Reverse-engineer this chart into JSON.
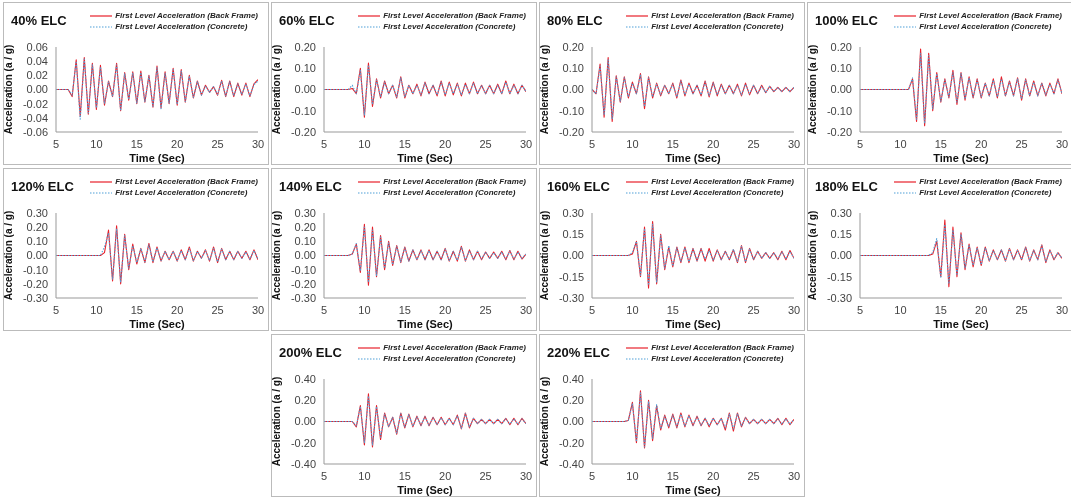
{
  "chart_data": [
    {
      "type": "line",
      "title": "40% ELC",
      "xlabel": "Time (Sec)",
      "ylabel": "Acceleration (a / g)",
      "legend": "top right",
      "xlim": [
        5,
        30
      ],
      "xticks": [
        5,
        10,
        15,
        20,
        25,
        30
      ],
      "ylim": [
        -0.06,
        0.06
      ],
      "yticks": [
        {
          "value": -0.06,
          "label": "-0.06"
        },
        {
          "value": -0.04,
          "label": "-0.04"
        },
        {
          "value": -0.02,
          "label": "-0.02"
        },
        {
          "value": 0,
          "label": "0.00"
        },
        {
          "value": 0.02,
          "label": "0.02"
        },
        {
          "value": 0.04,
          "label": "0.04"
        },
        {
          "value": 0.06,
          "label": "0.06"
        }
      ],
      "x": [
        5,
        5.5,
        6,
        6.5,
        7,
        7.5,
        8,
        8.5,
        9,
        9.5,
        10,
        10.5,
        11,
        11.5,
        12,
        12.5,
        13,
        13.5,
        14,
        14.5,
        15,
        15.5,
        16,
        16.5,
        17,
        17.5,
        18,
        18.5,
        19,
        19.5,
        20,
        20.5,
        21,
        21.5,
        22,
        22.5,
        23,
        23.5,
        24,
        24.5,
        25,
        25.5,
        26,
        26.5,
        27,
        27.5,
        28,
        28.5,
        29,
        29.5,
        30
      ],
      "series": [
        {
          "name": "First Level Acceleration (Back Frame)",
          "color": "#e8202a",
          "line_style": "solid",
          "values": [
            0,
            0,
            0,
            0,
            -0.01,
            0.042,
            -0.038,
            0.045,
            -0.035,
            0.037,
            -0.028,
            0.034,
            -0.022,
            0.012,
            -0.01,
            0.037,
            -0.03,
            0.024,
            -0.015,
            0.025,
            -0.02,
            0.026,
            -0.018,
            0.02,
            -0.025,
            0.033,
            -0.026,
            0.025,
            -0.02,
            0.03,
            -0.022,
            0.028,
            -0.018,
            0.02,
            -0.012,
            0.012,
            -0.008,
            0.006,
            -0.004,
            0.004,
            -0.008,
            0.013,
            -0.01,
            0.012,
            -0.01,
            0.009,
            -0.008,
            0.009,
            -0.01,
            0.008,
            0.014
          ]
        },
        {
          "name": "First Level Acceleration (Concrete)",
          "color": "#4f9fd8",
          "line_style": "dotted",
          "values": [
            0,
            0,
            0,
            0,
            -0.008,
            0.04,
            -0.042,
            0.043,
            -0.033,
            0.035,
            -0.026,
            0.032,
            -0.02,
            0.011,
            -0.01,
            0.035,
            -0.03,
            0.022,
            -0.014,
            0.023,
            -0.019,
            0.024,
            -0.017,
            0.019,
            -0.024,
            0.031,
            -0.027,
            0.023,
            -0.019,
            0.028,
            -0.021,
            0.026,
            -0.017,
            0.019,
            -0.011,
            0.011,
            -0.008,
            0.005,
            -0.004,
            0.004,
            -0.007,
            0.012,
            -0.009,
            0.011,
            -0.009,
            0.008,
            -0.007,
            0.008,
            -0.009,
            0.007,
            0.012
          ]
        }
      ]
    },
    {
      "type": "line",
      "title": "60% ELC",
      "xlabel": "Time (Sec)",
      "ylabel": "Acceleration (a / g)",
      "legend": "top right",
      "xlim": [
        5,
        30
      ],
      "xticks": [
        5,
        10,
        15,
        20,
        25,
        30
      ],
      "ylim": [
        -0.2,
        0.2
      ],
      "yticks": [
        {
          "value": -0.2,
          "label": "-0.20"
        },
        {
          "value": -0.1,
          "label": "-0.10"
        },
        {
          "value": 0,
          "label": "0.00"
        },
        {
          "value": 0.1,
          "label": "0.10"
        },
        {
          "value": 0.2,
          "label": "0.20"
        }
      ],
      "x": [
        5,
        5.5,
        6,
        6.5,
        7,
        7.5,
        8,
        8.5,
        9,
        9.5,
        10,
        10.5,
        11,
        11.5,
        12,
        12.5,
        13,
        13.5,
        14,
        14.5,
        15,
        15.5,
        16,
        16.5,
        17,
        17.5,
        18,
        18.5,
        19,
        19.5,
        20,
        20.5,
        21,
        21.5,
        22,
        22.5,
        23,
        23.5,
        24,
        24.5,
        25,
        25.5,
        26,
        26.5,
        27,
        27.5,
        28,
        28.5,
        29,
        29.5,
        30
      ],
      "series": [
        {
          "name": "First Level Acceleration (Back Frame)",
          "color": "#e8202a",
          "line_style": "solid",
          "values": [
            0,
            0,
            0,
            0,
            0,
            0,
            0,
            0.005,
            -0.02,
            0.1,
            -0.13,
            0.125,
            -0.08,
            0.05,
            -0.04,
            0.04,
            -0.02,
            0.02,
            -0.04,
            0.06,
            -0.04,
            0.02,
            -0.02,
            0.025,
            -0.03,
            0.035,
            -0.02,
            0.02,
            -0.03,
            0.04,
            -0.03,
            0.035,
            -0.025,
            0.03,
            -0.03,
            0.03,
            -0.02,
            0.035,
            -0.02,
            0.02,
            -0.02,
            0.02,
            -0.02,
            0.025,
            -0.02,
            0.04,
            -0.02,
            0.025,
            -0.02,
            0.02,
            -0.01
          ]
        },
        {
          "name": "First Level Acceleration (Concrete)",
          "color": "#4f9fd8",
          "line_style": "dotted",
          "values": [
            0,
            0,
            0,
            0,
            0,
            0,
            0,
            0.02,
            -0.02,
            0.09,
            -0.12,
            0.115,
            -0.07,
            0.045,
            -0.035,
            0.035,
            -0.02,
            0.02,
            -0.035,
            0.055,
            -0.035,
            0.02,
            -0.02,
            0.02,
            -0.025,
            0.03,
            -0.02,
            0.02,
            -0.025,
            0.035,
            -0.025,
            0.03,
            -0.02,
            0.025,
            -0.025,
            0.025,
            -0.02,
            0.03,
            -0.02,
            0.02,
            -0.02,
            0.02,
            -0.02,
            0.02,
            -0.02,
            0.035,
            -0.02,
            0.02,
            -0.02,
            0.02,
            -0.01
          ]
        }
      ]
    },
    {
      "type": "line",
      "title": "80% ELC",
      "xlabel": "Time (Sec)",
      "ylabel": "Acceleration (a / g)",
      "legend": "top right",
      "xlim": [
        5,
        30
      ],
      "xticks": [
        5,
        10,
        15,
        20,
        25,
        30
      ],
      "ylim": [
        -0.2,
        0.2
      ],
      "yticks": [
        {
          "value": -0.2,
          "label": "-0.20"
        },
        {
          "value": -0.1,
          "label": "-0.10"
        },
        {
          "value": 0,
          "label": "0.00"
        },
        {
          "value": 0.1,
          "label": "0.10"
        },
        {
          "value": 0.2,
          "label": "0.20"
        }
      ],
      "x": [
        5,
        5.5,
        6,
        6.5,
        7,
        7.5,
        8,
        8.5,
        9,
        9.5,
        10,
        10.5,
        11,
        11.5,
        12,
        12.5,
        13,
        13.5,
        14,
        14.5,
        15,
        15.5,
        16,
        16.5,
        17,
        17.5,
        18,
        18.5,
        19,
        19.5,
        20,
        20.5,
        21,
        21.5,
        22,
        22.5,
        23,
        23.5,
        24,
        24.5,
        25,
        25.5,
        26,
        26.5,
        27,
        27.5,
        28,
        28.5,
        29,
        29.5,
        30
      ],
      "series": [
        {
          "name": "First Level Acceleration (Back Frame)",
          "color": "#e8202a",
          "line_style": "solid",
          "values": [
            0,
            -0.02,
            0.12,
            -0.13,
            0.15,
            -0.15,
            0.065,
            -0.06,
            0.06,
            -0.04,
            0.035,
            -0.02,
            0.075,
            -0.09,
            0.06,
            -0.04,
            0.03,
            -0.03,
            0.02,
            -0.02,
            0.03,
            -0.04,
            0.045,
            -0.03,
            0.03,
            -0.02,
            0.02,
            -0.03,
            0.04,
            -0.035,
            0.035,
            -0.03,
            0.025,
            -0.02,
            0.02,
            -0.02,
            0.025,
            -0.03,
            0.03,
            -0.025,
            0.02,
            -0.02,
            0.02,
            -0.015,
            0.015,
            -0.01,
            0.01,
            -0.01,
            0.01,
            -0.01,
            0.01
          ]
        },
        {
          "name": "First Level Acceleration (Concrete)",
          "color": "#4f9fd8",
          "line_style": "dotted",
          "values": [
            0,
            -0.02,
            0.11,
            -0.12,
            0.14,
            -0.14,
            0.06,
            -0.055,
            0.055,
            -0.035,
            0.03,
            -0.02,
            0.07,
            -0.08,
            0.055,
            -0.035,
            0.025,
            -0.025,
            0.02,
            -0.02,
            0.025,
            -0.035,
            0.04,
            -0.025,
            0.025,
            -0.02,
            0.02,
            -0.025,
            0.035,
            -0.03,
            0.03,
            -0.025,
            0.02,
            -0.02,
            0.02,
            -0.02,
            0.02,
            -0.025,
            0.025,
            -0.02,
            0.02,
            -0.02,
            0.015,
            -0.015,
            0.015,
            -0.01,
            0.01,
            -0.01,
            0.01,
            -0.01,
            0.01
          ]
        }
      ]
    },
    {
      "type": "line",
      "title": "100% ELC",
      "xlabel": "Time (Sec)",
      "ylabel": "Acceleration (a / g)",
      "legend": "top right",
      "xlim": [
        5,
        30
      ],
      "xticks": [
        5,
        10,
        15,
        20,
        25,
        30
      ],
      "ylim": [
        -0.2,
        0.2
      ],
      "yticks": [
        {
          "value": -0.2,
          "label": "-0.20"
        },
        {
          "value": -0.1,
          "label": "-0.10"
        },
        {
          "value": 0,
          "label": "0.00"
        },
        {
          "value": 0.1,
          "label": "0.10"
        },
        {
          "value": 0.2,
          "label": "0.20"
        }
      ],
      "x": [
        5,
        5.5,
        6,
        6.5,
        7,
        7.5,
        8,
        8.5,
        9,
        9.5,
        10,
        10.5,
        11,
        11.5,
        12,
        12.5,
        13,
        13.5,
        14,
        14.5,
        15,
        15.5,
        16,
        16.5,
        17,
        17.5,
        18,
        18.5,
        19,
        19.5,
        20,
        20.5,
        21,
        21.5,
        22,
        22.5,
        23,
        23.5,
        24,
        24.5,
        25,
        25.5,
        26,
        26.5,
        27,
        27.5,
        28,
        28.5,
        29,
        29.5,
        30
      ],
      "series": [
        {
          "name": "First Level Acceleration (Back Frame)",
          "color": "#e8202a",
          "line_style": "solid",
          "values": [
            0,
            0,
            0,
            0,
            0,
            0,
            0,
            0,
            0,
            0,
            0,
            0,
            0,
            0.05,
            -0.15,
            0.19,
            -0.17,
            0.17,
            -0.1,
            0.08,
            -0.06,
            0.05,
            -0.04,
            0.09,
            -0.07,
            0.08,
            -0.05,
            0.06,
            -0.04,
            0.05,
            -0.04,
            0.03,
            -0.03,
            0.05,
            -0.04,
            0.06,
            -0.03,
            0.04,
            -0.03,
            0.055,
            -0.05,
            0.05,
            -0.03,
            0.04,
            -0.03,
            0.03,
            -0.03,
            0.03,
            -0.02,
            0.05,
            -0.02
          ]
        },
        {
          "name": "First Level Acceleration (Concrete)",
          "color": "#4f9fd8",
          "line_style": "dotted",
          "values": [
            0,
            0,
            0,
            0,
            0,
            0,
            0,
            0,
            0,
            0,
            0,
            0,
            0,
            0.055,
            -0.14,
            0.17,
            -0.16,
            0.16,
            -0.09,
            0.075,
            -0.055,
            0.045,
            -0.035,
            0.08,
            -0.06,
            0.075,
            -0.045,
            0.055,
            -0.035,
            0.045,
            -0.035,
            0.03,
            -0.03,
            0.045,
            -0.035,
            0.05,
            -0.03,
            0.035,
            -0.03,
            0.05,
            -0.045,
            0.045,
            -0.03,
            0.035,
            -0.03,
            0.03,
            -0.025,
            0.025,
            -0.02,
            0.045,
            -0.02
          ]
        }
      ]
    },
    {
      "type": "line",
      "title": "120% ELC",
      "xlabel": "Time (Sec)",
      "ylabel": "Acceleration (a / g)",
      "legend": "top right",
      "xlim": [
        5,
        30
      ],
      "xticks": [
        5,
        10,
        15,
        20,
        25,
        30
      ],
      "ylim": [
        -0.3,
        0.3
      ],
      "yticks": [
        {
          "value": -0.3,
          "label": "-0.30"
        },
        {
          "value": -0.2,
          "label": "-0.20"
        },
        {
          "value": -0.1,
          "label": "-0.10"
        },
        {
          "value": 0,
          "label": "0.00"
        },
        {
          "value": 0.1,
          "label": "0.10"
        },
        {
          "value": 0.2,
          "label": "0.20"
        },
        {
          "value": 0.3,
          "label": "0.30"
        }
      ],
      "x": [
        5,
        5.5,
        6,
        6.5,
        7,
        7.5,
        8,
        8.5,
        9,
        9.5,
        10,
        10.5,
        11,
        11.5,
        12,
        12.5,
        13,
        13.5,
        14,
        14.5,
        15,
        15.5,
        16,
        16.5,
        17,
        17.5,
        18,
        18.5,
        19,
        19.5,
        20,
        20.5,
        21,
        21.5,
        22,
        22.5,
        23,
        23.5,
        24,
        24.5,
        25,
        25.5,
        26,
        26.5,
        27,
        27.5,
        28,
        28.5,
        29,
        29.5,
        30
      ],
      "series": [
        {
          "name": "First Level Acceleration (Back Frame)",
          "color": "#e8202a",
          "line_style": "solid",
          "values": [
            0,
            0,
            0,
            0,
            0,
            0,
            0,
            0,
            0,
            0,
            0,
            0,
            0.02,
            0.18,
            -0.18,
            0.21,
            -0.2,
            0.15,
            -0.1,
            0.08,
            -0.06,
            0.05,
            -0.05,
            0.085,
            -0.05,
            0.06,
            -0.04,
            0.03,
            -0.03,
            0.03,
            -0.04,
            0.04,
            -0.03,
            0.06,
            -0.04,
            0.03,
            -0.02,
            0.04,
            -0.04,
            0.06,
            -0.05,
            0.05,
            -0.03,
            0.03,
            -0.03,
            0.03,
            -0.02,
            0.03,
            -0.03,
            0.04,
            -0.03
          ]
        },
        {
          "name": "First Level Acceleration (Concrete)",
          "color": "#4f9fd8",
          "line_style": "dotted",
          "values": [
            0,
            0,
            0,
            0,
            0,
            0,
            0,
            0,
            0,
            0,
            0,
            0,
            0.06,
            0.16,
            -0.17,
            0.19,
            -0.19,
            0.14,
            -0.09,
            0.07,
            -0.05,
            0.05,
            -0.045,
            0.075,
            -0.045,
            0.055,
            -0.035,
            0.03,
            -0.03,
            0.03,
            -0.035,
            0.035,
            -0.03,
            0.05,
            -0.035,
            0.03,
            -0.02,
            0.035,
            -0.035,
            0.05,
            -0.045,
            0.045,
            -0.03,
            0.03,
            -0.03,
            0.03,
            -0.02,
            0.025,
            -0.025,
            0.035,
            -0.025
          ]
        }
      ]
    },
    {
      "type": "line",
      "title": "140% ELC",
      "xlabel": "Time (Sec)",
      "ylabel": "Acceleration (a / g)",
      "legend": "top right",
      "xlim": [
        5,
        30
      ],
      "xticks": [
        5,
        10,
        15,
        20,
        25,
        30
      ],
      "ylim": [
        -0.3,
        0.3
      ],
      "yticks": [
        {
          "value": -0.3,
          "label": "-0.30"
        },
        {
          "value": -0.2,
          "label": "-0.20"
        },
        {
          "value": -0.1,
          "label": "-0.10"
        },
        {
          "value": 0,
          "label": "0.00"
        },
        {
          "value": 0.1,
          "label": "0.10"
        },
        {
          "value": 0.2,
          "label": "0.20"
        },
        {
          "value": 0.3,
          "label": "0.30"
        }
      ],
      "x": [
        5,
        5.5,
        6,
        6.5,
        7,
        7.5,
        8,
        8.5,
        9,
        9.5,
        10,
        10.5,
        11,
        11.5,
        12,
        12.5,
        13,
        13.5,
        14,
        14.5,
        15,
        15.5,
        16,
        16.5,
        17,
        17.5,
        18,
        18.5,
        19,
        19.5,
        20,
        20.5,
        21,
        21.5,
        22,
        22.5,
        23,
        23.5,
        24,
        24.5,
        25,
        25.5,
        26,
        26.5,
        27,
        27.5,
        28,
        28.5,
        29,
        29.5,
        30
      ],
      "series": [
        {
          "name": "First Level Acceleration (Back Frame)",
          "color": "#e8202a",
          "line_style": "solid",
          "values": [
            0,
            0,
            0,
            0,
            0,
            0,
            0,
            0.01,
            0.08,
            -0.12,
            0.22,
            -0.21,
            0.2,
            -0.15,
            0.14,
            -0.1,
            0.1,
            -0.07,
            0.07,
            -0.05,
            0.06,
            -0.04,
            0.04,
            -0.03,
            0.04,
            -0.03,
            0.04,
            -0.03,
            0.03,
            -0.03,
            0.05,
            -0.04,
            0.03,
            -0.04,
            0.065,
            -0.04,
            0.04,
            -0.03,
            0.03,
            -0.03,
            0.025,
            -0.02,
            0.025,
            -0.02,
            0.03,
            -0.03,
            0.035,
            -0.03,
            0.03,
            -0.025,
            0.01
          ]
        },
        {
          "name": "First Level Acceleration (Concrete)",
          "color": "#4f9fd8",
          "line_style": "dotted",
          "values": [
            0,
            0,
            0,
            0,
            0,
            0,
            0,
            0.01,
            0.085,
            -0.11,
            0.2,
            -0.19,
            0.18,
            -0.14,
            0.13,
            -0.09,
            0.09,
            -0.065,
            0.065,
            -0.045,
            0.055,
            -0.04,
            0.04,
            -0.03,
            0.035,
            -0.03,
            0.035,
            -0.03,
            0.03,
            -0.03,
            0.045,
            -0.035,
            0.03,
            -0.035,
            0.06,
            -0.035,
            0.035,
            -0.03,
            0.03,
            -0.025,
            0.025,
            -0.02,
            0.02,
            -0.02,
            0.025,
            -0.025,
            0.03,
            -0.025,
            0.025,
            -0.02,
            0.01
          ]
        }
      ]
    },
    {
      "type": "line",
      "title": "160% ELC",
      "xlabel": "Time (Sec)",
      "ylabel": "Acceleration (a / g)",
      "legend": "top right",
      "xlim": [
        5,
        30
      ],
      "xticks": [
        5,
        10,
        15,
        20,
        25,
        30
      ],
      "ylim": [
        -0.3,
        0.3
      ],
      "yticks": [
        {
          "value": -0.3,
          "label": "-0.30"
        },
        {
          "value": -0.15,
          "label": "-0.15"
        },
        {
          "value": 0,
          "label": "0.00"
        },
        {
          "value": 0.15,
          "label": "0.15"
        },
        {
          "value": 0.3,
          "label": "0.30"
        }
      ],
      "x": [
        5,
        5.5,
        6,
        6.5,
        7,
        7.5,
        8,
        8.5,
        9,
        9.5,
        10,
        10.5,
        11,
        11.5,
        12,
        12.5,
        13,
        13.5,
        14,
        14.5,
        15,
        15.5,
        16,
        16.5,
        17,
        17.5,
        18,
        18.5,
        19,
        19.5,
        20,
        20.5,
        21,
        21.5,
        22,
        22.5,
        23,
        23.5,
        24,
        24.5,
        25,
        25.5,
        26,
        26.5,
        27,
        27.5,
        28,
        28.5,
        29,
        29.5,
        30
      ],
      "series": [
        {
          "name": "First Level Acceleration (Back Frame)",
          "color": "#e8202a",
          "line_style": "solid",
          "values": [
            0,
            0,
            0,
            0,
            0,
            0,
            0,
            0,
            0,
            0,
            0.01,
            0.1,
            -0.15,
            0.2,
            -0.23,
            0.24,
            -0.2,
            0.15,
            -0.1,
            0.06,
            -0.08,
            0.06,
            -0.05,
            0.06,
            -0.05,
            0.05,
            -0.04,
            0.05,
            -0.04,
            0.05,
            -0.04,
            0.04,
            -0.03,
            0.03,
            -0.03,
            0.04,
            -0.05,
            0.07,
            -0.05,
            0.05,
            -0.03,
            0.03,
            -0.02,
            0.02,
            -0.02,
            0.02,
            -0.03,
            0.03,
            -0.03,
            0.035,
            -0.02
          ]
        },
        {
          "name": "First Level Acceleration (Concrete)",
          "color": "#4f9fd8",
          "line_style": "dotted",
          "values": [
            0,
            0,
            0,
            0,
            0,
            0,
            0,
            0,
            0,
            0,
            0.02,
            0.1,
            -0.14,
            0.19,
            -0.21,
            0.22,
            -0.19,
            0.14,
            -0.09,
            0.07,
            -0.075,
            0.055,
            -0.045,
            0.055,
            -0.045,
            0.045,
            -0.035,
            0.045,
            -0.025,
            0.035,
            -0.035,
            0.035,
            -0.03,
            0.03,
            -0.03,
            0.045,
            -0.045,
            0.065,
            -0.045,
            0.045,
            -0.03,
            0.03,
            -0.02,
            0.02,
            -0.02,
            0.02,
            -0.025,
            0.025,
            -0.025,
            0.03,
            -0.02
          ]
        }
      ]
    },
    {
      "type": "line",
      "title": "180% ELC",
      "xlabel": "Time (Sec)",
      "ylabel": "Acceleration (a / g)",
      "legend": "top right",
      "xlim": [
        5,
        30
      ],
      "xticks": [
        5,
        10,
        15,
        20,
        25,
        30
      ],
      "ylim": [
        -0.3,
        0.3
      ],
      "yticks": [
        {
          "value": -0.3,
          "label": "-0.30"
        },
        {
          "value": -0.15,
          "label": "-0.15"
        },
        {
          "value": 0,
          "label": "0.00"
        },
        {
          "value": 0.15,
          "label": "0.15"
        },
        {
          "value": 0.3,
          "label": "0.30"
        }
      ],
      "x": [
        5,
        5.5,
        6,
        6.5,
        7,
        7.5,
        8,
        8.5,
        9,
        9.5,
        10,
        10.5,
        11,
        11.5,
        12,
        12.5,
        13,
        13.5,
        14,
        14.5,
        15,
        15.5,
        16,
        16.5,
        17,
        17.5,
        18,
        18.5,
        19,
        19.5,
        20,
        20.5,
        21,
        21.5,
        22,
        22.5,
        23,
        23.5,
        24,
        24.5,
        25,
        25.5,
        26,
        26.5,
        27,
        27.5,
        28,
        28.5,
        29,
        29.5,
        30
      ],
      "series": [
        {
          "name": "First Level Acceleration (Back Frame)",
          "color": "#e8202a",
          "line_style": "solid",
          "values": [
            0,
            0,
            0,
            0,
            0,
            0,
            0,
            0,
            0,
            0,
            0,
            0,
            0,
            0,
            0,
            0,
            0,
            0,
            0.01,
            0.1,
            -0.15,
            0.25,
            -0.22,
            0.2,
            -0.15,
            0.16,
            -0.1,
            0.08,
            -0.08,
            0.06,
            -0.07,
            0.06,
            -0.04,
            0.04,
            -0.03,
            0.04,
            -0.04,
            0.05,
            -0.03,
            0.04,
            -0.03,
            0.06,
            -0.04,
            0.04,
            -0.03,
            0.075,
            -0.05,
            0.04,
            -0.03,
            0.02,
            -0.02
          ]
        },
        {
          "name": "First Level Acceleration (Concrete)",
          "color": "#4f9fd8",
          "line_style": "dotted",
          "values": [
            0,
            0,
            0,
            0,
            0,
            0,
            0,
            0,
            0,
            0,
            0,
            0,
            0,
            0,
            0,
            0,
            0,
            0,
            0.02,
            0.12,
            -0.16,
            0.22,
            -0.2,
            0.18,
            -0.14,
            0.15,
            -0.09,
            0.075,
            -0.07,
            0.055,
            -0.065,
            0.055,
            -0.035,
            0.035,
            -0.03,
            0.04,
            -0.035,
            0.045,
            -0.03,
            0.035,
            -0.03,
            0.055,
            -0.035,
            0.035,
            -0.03,
            0.07,
            -0.045,
            0.035,
            -0.025,
            0.02,
            -0.02
          ]
        }
      ]
    },
    {
      "type": "line",
      "title": "200% ELC",
      "xlabel": "Time (Sec)",
      "ylabel": "Acceleration (a / g)",
      "legend": "top right",
      "xlim": [
        5,
        30
      ],
      "xticks": [
        5,
        10,
        15,
        20,
        25,
        30
      ],
      "ylim": [
        -0.4,
        0.4
      ],
      "yticks": [
        {
          "value": -0.4,
          "label": "-0.40"
        },
        {
          "value": -0.2,
          "label": "-0.20"
        },
        {
          "value": 0,
          "label": "0.00"
        },
        {
          "value": 0.2,
          "label": "0.20"
        },
        {
          "value": 0.4,
          "label": "0.40"
        }
      ],
      "x": [
        5,
        5.5,
        6,
        6.5,
        7,
        7.5,
        8,
        8.5,
        9,
        9.5,
        10,
        10.5,
        11,
        11.5,
        12,
        12.5,
        13,
        13.5,
        14,
        14.5,
        15,
        15.5,
        16,
        16.5,
        17,
        17.5,
        18,
        18.5,
        19,
        19.5,
        20,
        20.5,
        21,
        21.5,
        22,
        22.5,
        23,
        23.5,
        24,
        24.5,
        25,
        25.5,
        26,
        26.5,
        27,
        27.5,
        28,
        28.5,
        29,
        29.5,
        30
      ],
      "series": [
        {
          "name": "First Level Acceleration (Back Frame)",
          "color": "#e8202a",
          "line_style": "solid",
          "values": [
            0,
            0,
            0,
            0,
            0,
            0,
            0,
            0,
            -0.05,
            0.15,
            -0.22,
            0.26,
            -0.24,
            0.15,
            -0.17,
            0.08,
            -0.05,
            0.04,
            -0.12,
            0.08,
            -0.06,
            0.07,
            -0.05,
            0.05,
            -0.04,
            0.05,
            -0.04,
            0.04,
            -0.03,
            0.04,
            -0.03,
            0.03,
            -0.03,
            0.06,
            -0.07,
            0.08,
            -0.06,
            0.03,
            -0.02,
            0.02,
            -0.02,
            0.02,
            -0.02,
            0.02,
            -0.02,
            0.03,
            -0.03,
            0.03,
            -0.03,
            0.03,
            -0.02
          ]
        },
        {
          "name": "First Level Acceleration (Concrete)",
          "color": "#4f9fd8",
          "line_style": "dotted",
          "values": [
            0,
            0,
            0,
            0,
            0,
            0,
            0,
            0,
            -0.04,
            0.14,
            -0.2,
            0.24,
            -0.22,
            0.14,
            -0.15,
            0.07,
            -0.05,
            0.04,
            -0.11,
            0.075,
            -0.055,
            0.065,
            -0.045,
            0.045,
            -0.035,
            0.045,
            -0.035,
            0.035,
            -0.03,
            0.035,
            -0.03,
            0.03,
            -0.03,
            0.055,
            -0.065,
            0.075,
            -0.055,
            0.03,
            -0.02,
            0.02,
            -0.02,
            0.02,
            -0.02,
            0.02,
            -0.02,
            0.025,
            -0.025,
            0.025,
            -0.025,
            0.025,
            -0.02
          ]
        }
      ]
    },
    {
      "type": "line",
      "title": "220% ELC",
      "xlabel": "Time (Sec)",
      "ylabel": "Acceleration (a / g)",
      "legend": "top right",
      "xlim": [
        5,
        30
      ],
      "xticks": [
        5,
        10,
        15,
        20,
        25,
        30
      ],
      "ylim": [
        -0.4,
        0.4
      ],
      "yticks": [
        {
          "value": -0.4,
          "label": "-0.40"
        },
        {
          "value": -0.2,
          "label": "-0.20"
        },
        {
          "value": 0,
          "label": "0.00"
        },
        {
          "value": 0.2,
          "label": "0.20"
        },
        {
          "value": 0.4,
          "label": "0.40"
        }
      ],
      "x": [
        5,
        5.5,
        6,
        6.5,
        7,
        7.5,
        8,
        8.5,
        9,
        9.5,
        10,
        10.5,
        11,
        11.5,
        12,
        12.5,
        13,
        13.5,
        14,
        14.5,
        15,
        15.5,
        16,
        16.5,
        17,
        17.5,
        18,
        18.5,
        19,
        19.5,
        20,
        20.5,
        21,
        21.5,
        22,
        22.5,
        23,
        23.5,
        24,
        24.5,
        25,
        25.5,
        26,
        26.5,
        27,
        27.5,
        28,
        28.5,
        29,
        29.5,
        30
      ],
      "series": [
        {
          "name": "First Level Acceleration (Back Frame)",
          "color": "#e8202a",
          "line_style": "solid",
          "values": [
            0,
            0,
            0,
            0,
            0,
            0,
            0,
            0,
            0,
            0.01,
            0.18,
            -0.2,
            0.29,
            -0.25,
            0.2,
            -0.18,
            0.15,
            -0.08,
            0.06,
            -0.06,
            0.07,
            -0.06,
            0.08,
            -0.05,
            0.06,
            -0.04,
            0.05,
            -0.04,
            0.03,
            -0.05,
            0.03,
            -0.03,
            0.03,
            -0.08,
            0.08,
            -0.09,
            0.08,
            -0.05,
            0.04,
            -0.02,
            0.02,
            -0.02,
            0.02,
            -0.02,
            0.02,
            -0.02,
            0.03,
            -0.03,
            0.03,
            -0.03,
            0.02
          ]
        },
        {
          "name": "First Level Acceleration (Concrete)",
          "color": "#4f9fd8",
          "line_style": "dotted",
          "values": [
            0,
            0,
            0,
            0,
            0,
            0,
            0,
            0,
            0,
            0.01,
            0.17,
            -0.19,
            0.27,
            -0.24,
            0.19,
            -0.16,
            0.16,
            -0.07,
            0.05,
            -0.05,
            0.06,
            -0.05,
            0.07,
            -0.045,
            0.055,
            -0.035,
            0.045,
            -0.035,
            0.03,
            -0.04,
            0.03,
            -0.03,
            0.03,
            -0.06,
            0.07,
            -0.07,
            0.075,
            -0.045,
            0.035,
            -0.02,
            0.02,
            -0.02,
            0.02,
            -0.02,
            0.02,
            -0.02,
            0.025,
            -0.025,
            0.025,
            -0.025,
            0.02
          ]
        }
      ]
    }
  ]
}
